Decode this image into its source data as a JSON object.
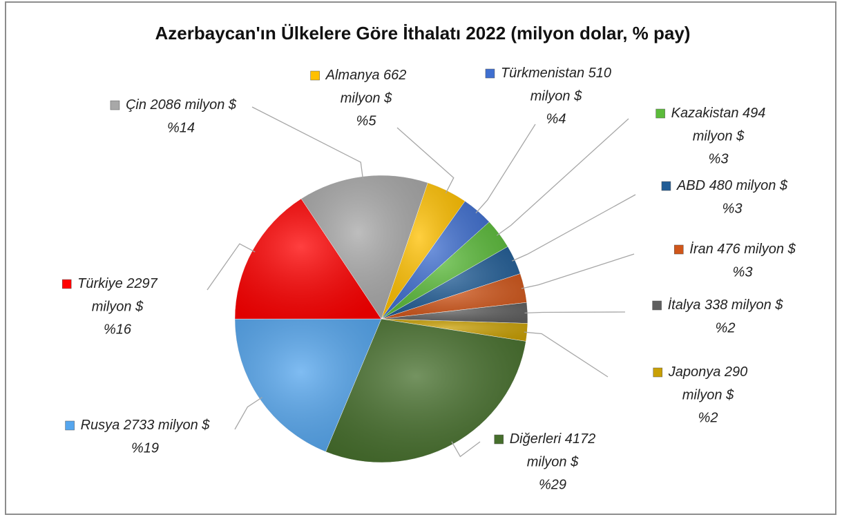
{
  "chart_data": {
    "type": "pie",
    "title": "Azerbaycan'ın Ülkelere Göre İthalatı 2022 (milyon dolar, % pay)",
    "unit": "milyon $",
    "categories": [
      "Almanya",
      "Türkmenistan",
      "Kazakistan",
      "ABD",
      "İran",
      "İtalya",
      "Japonya",
      "Diğerleri",
      "Rusya",
      "Türkiye",
      "Çin"
    ],
    "values": [
      662,
      510,
      494,
      480,
      476,
      338,
      290,
      4172,
      2733,
      2297,
      2086
    ],
    "percentages": [
      5,
      4,
      3,
      3,
      3,
      2,
      2,
      29,
      19,
      16,
      14
    ],
    "percentage_labels": [
      "%5",
      "%4",
      "%3",
      "%3",
      "%3",
      "%2",
      "%2",
      "%29",
      "%19",
      "%16",
      "%14"
    ],
    "colors": [
      "#ffc000",
      "#3f6fd0",
      "#5bbb3a",
      "#215d96",
      "#d0561a",
      "#5f5f5f",
      "#c9a005",
      "#466f2c",
      "#55a6ee",
      "#ff0000",
      "#a8a8a8"
    ]
  }
}
